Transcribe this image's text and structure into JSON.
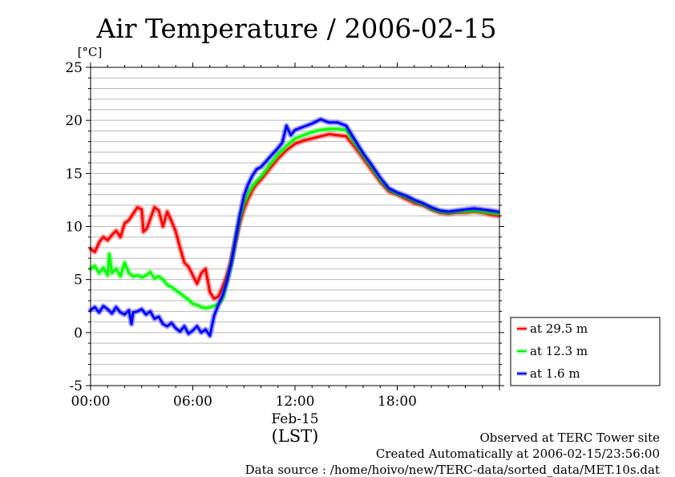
{
  "chart_data": {
    "type": "line",
    "title": "Air Temperature / 2006-02-15",
    "ylabel": "[°C]",
    "xlabel": "(LST)",
    "date_label": "Feb-15",
    "ylim": [
      -5,
      25
    ],
    "xlim_hours": [
      0,
      24
    ],
    "y_ticks": [
      "25",
      "20",
      "15",
      "10",
      "5",
      "0",
      "-5"
    ],
    "x_ticks": [
      {
        "h": 0,
        "label": "00:00"
      },
      {
        "h": 6,
        "label": "06:00"
      },
      {
        "h": 12,
        "label": "12:00"
      },
      {
        "h": 18,
        "label": "18:00"
      }
    ],
    "grid": true,
    "minor_grid_step": 1,
    "legend_position": "right",
    "series": [
      {
        "name": "at 29.5 m",
        "color": "#ff0000",
        "points": [
          [
            0,
            7.9
          ],
          [
            0.25,
            7.6
          ],
          [
            0.5,
            8.5
          ],
          [
            0.75,
            9.0
          ],
          [
            1,
            8.7
          ],
          [
            1.25,
            9.2
          ],
          [
            1.5,
            9.6
          ],
          [
            1.75,
            9.0
          ],
          [
            2,
            10.3
          ],
          [
            2.25,
            10.6
          ],
          [
            2.5,
            11.2
          ],
          [
            2.75,
            11.8
          ],
          [
            3.0,
            11.6
          ],
          [
            3.1,
            9.5
          ],
          [
            3.3,
            9.8
          ],
          [
            3.5,
            10.7
          ],
          [
            3.75,
            11.8
          ],
          [
            4.0,
            11.5
          ],
          [
            4.25,
            10.0
          ],
          [
            4.5,
            11.4
          ],
          [
            4.75,
            10.5
          ],
          [
            5.0,
            9.5
          ],
          [
            5.25,
            8.0
          ],
          [
            5.5,
            6.6
          ],
          [
            5.75,
            6.2
          ],
          [
            6.0,
            5.4
          ],
          [
            6.25,
            4.6
          ],
          [
            6.5,
            5.6
          ],
          [
            6.75,
            6.0
          ],
          [
            7.0,
            3.8
          ],
          [
            7.25,
            3.2
          ],
          [
            7.5,
            3.4
          ],
          [
            7.75,
            4.3
          ],
          [
            8.0,
            5.4
          ],
          [
            8.25,
            6.7
          ],
          [
            8.5,
            8.6
          ],
          [
            8.75,
            10.3
          ],
          [
            9.0,
            11.6
          ],
          [
            9.25,
            12.6
          ],
          [
            9.5,
            13.4
          ],
          [
            9.75,
            14.0
          ],
          [
            10.0,
            14.4
          ],
          [
            10.5,
            15.4
          ],
          [
            11.0,
            16.4
          ],
          [
            11.5,
            17.2
          ],
          [
            12.0,
            17.8
          ],
          [
            12.5,
            18.1
          ],
          [
            13.0,
            18.3
          ],
          [
            13.5,
            18.5
          ],
          [
            14.0,
            18.7
          ],
          [
            14.5,
            18.6
          ],
          [
            15.0,
            18.5
          ],
          [
            15.5,
            17.5
          ],
          [
            16.0,
            16.4
          ],
          [
            16.5,
            15.3
          ],
          [
            17.0,
            14.2
          ],
          [
            17.5,
            13.3
          ],
          [
            18.0,
            13.0
          ],
          [
            18.5,
            12.6
          ],
          [
            19.0,
            12.2
          ],
          [
            19.5,
            12.0
          ],
          [
            20.0,
            11.6
          ],
          [
            20.5,
            11.3
          ],
          [
            21.0,
            11.2
          ],
          [
            21.5,
            11.3
          ],
          [
            22.0,
            11.3
          ],
          [
            22.5,
            11.4
          ],
          [
            23.0,
            11.3
          ],
          [
            23.5,
            11.1
          ],
          [
            23.9,
            11.0
          ]
        ]
      },
      {
        "name": "at 12.3 m",
        "color": "#00ff00",
        "points": [
          [
            0,
            6.0
          ],
          [
            0.25,
            6.3
          ],
          [
            0.5,
            5.6
          ],
          [
            0.75,
            6.1
          ],
          [
            1.0,
            5.4
          ],
          [
            1.1,
            7.4
          ],
          [
            1.25,
            5.6
          ],
          [
            1.5,
            6.0
          ],
          [
            1.75,
            5.3
          ],
          [
            2.0,
            6.6
          ],
          [
            2.25,
            5.6
          ],
          [
            2.5,
            5.3
          ],
          [
            2.75,
            5.4
          ],
          [
            3.0,
            5.2
          ],
          [
            3.25,
            5.4
          ],
          [
            3.5,
            5.7
          ],
          [
            3.75,
            5.1
          ],
          [
            4.0,
            5.3
          ],
          [
            4.25,
            5.0
          ],
          [
            4.5,
            4.5
          ],
          [
            4.75,
            4.3
          ],
          [
            5.0,
            4.0
          ],
          [
            5.25,
            3.7
          ],
          [
            5.5,
            3.4
          ],
          [
            5.75,
            3.1
          ],
          [
            6.0,
            2.7
          ],
          [
            6.25,
            2.6
          ],
          [
            6.5,
            2.4
          ],
          [
            6.75,
            2.3
          ],
          [
            7.0,
            2.4
          ],
          [
            7.25,
            2.5
          ],
          [
            7.5,
            2.7
          ],
          [
            7.75,
            3.2
          ],
          [
            8.0,
            4.8
          ],
          [
            8.25,
            6.5
          ],
          [
            8.5,
            8.7
          ],
          [
            8.75,
            10.7
          ],
          [
            9.0,
            12.2
          ],
          [
            9.25,
            13.1
          ],
          [
            9.5,
            13.8
          ],
          [
            9.75,
            14.3
          ],
          [
            10.0,
            14.7
          ],
          [
            10.5,
            15.8
          ],
          [
            11.0,
            16.8
          ],
          [
            11.5,
            17.6
          ],
          [
            12.0,
            18.3
          ],
          [
            12.5,
            18.6
          ],
          [
            13.0,
            18.9
          ],
          [
            13.5,
            19.1
          ],
          [
            14.0,
            19.2
          ],
          [
            14.5,
            19.2
          ],
          [
            15.0,
            19.1
          ],
          [
            15.5,
            17.9
          ],
          [
            16.0,
            16.7
          ],
          [
            16.5,
            15.6
          ],
          [
            17.0,
            14.4
          ],
          [
            17.5,
            13.5
          ],
          [
            18.0,
            13.1
          ],
          [
            18.5,
            12.8
          ],
          [
            19.0,
            12.4
          ],
          [
            19.5,
            12.1
          ],
          [
            20.0,
            11.7
          ],
          [
            20.5,
            11.4
          ],
          [
            21.0,
            11.3
          ],
          [
            21.5,
            11.4
          ],
          [
            22.0,
            11.4
          ],
          [
            22.5,
            11.5
          ],
          [
            23.0,
            11.4
          ],
          [
            23.5,
            11.3
          ],
          [
            23.9,
            11.2
          ]
        ]
      },
      {
        "name": "at 1.6 m",
        "color": "#0000ff",
        "points": [
          [
            0,
            2.1
          ],
          [
            0.25,
            2.4
          ],
          [
            0.5,
            1.9
          ],
          [
            0.75,
            2.5
          ],
          [
            1.0,
            2.2
          ],
          [
            1.25,
            1.8
          ],
          [
            1.5,
            2.4
          ],
          [
            1.75,
            1.9
          ],
          [
            2.0,
            1.7
          ],
          [
            2.25,
            2.1
          ],
          [
            2.4,
            0.8
          ],
          [
            2.5,
            1.9
          ],
          [
            2.75,
            2.0
          ],
          [
            3.0,
            2.2
          ],
          [
            3.25,
            1.7
          ],
          [
            3.5,
            2.0
          ],
          [
            3.75,
            1.3
          ],
          [
            4.0,
            1.5
          ],
          [
            4.25,
            0.8
          ],
          [
            4.5,
            0.6
          ],
          [
            4.75,
            0.9
          ],
          [
            5.0,
            0.4
          ],
          [
            5.25,
            0.1
          ],
          [
            5.5,
            0.6
          ],
          [
            5.75,
            -0.1
          ],
          [
            6.0,
            0.2
          ],
          [
            6.25,
            0.6
          ],
          [
            6.5,
            0.0
          ],
          [
            6.75,
            0.3
          ],
          [
            7.0,
            -0.3
          ],
          [
            7.25,
            1.6
          ],
          [
            7.5,
            2.6
          ],
          [
            7.75,
            3.5
          ],
          [
            8.0,
            4.8
          ],
          [
            8.25,
            6.5
          ],
          [
            8.5,
            8.7
          ],
          [
            8.75,
            11.0
          ],
          [
            9.0,
            12.9
          ],
          [
            9.25,
            14.0
          ],
          [
            9.5,
            14.8
          ],
          [
            9.75,
            15.4
          ],
          [
            10.0,
            15.6
          ],
          [
            10.5,
            16.5
          ],
          [
            11.0,
            17.4
          ],
          [
            11.25,
            17.9
          ],
          [
            11.5,
            19.5
          ],
          [
            11.75,
            18.6
          ],
          [
            12.0,
            19.1
          ],
          [
            12.5,
            19.4
          ],
          [
            13.0,
            19.7
          ],
          [
            13.5,
            20.1
          ],
          [
            14.0,
            19.8
          ],
          [
            14.5,
            19.8
          ],
          [
            15.0,
            19.5
          ],
          [
            15.5,
            18.2
          ],
          [
            16.0,
            16.9
          ],
          [
            16.5,
            15.8
          ],
          [
            17.0,
            14.6
          ],
          [
            17.5,
            13.6
          ],
          [
            18.0,
            13.2
          ],
          [
            18.5,
            12.9
          ],
          [
            19.0,
            12.5
          ],
          [
            19.5,
            12.2
          ],
          [
            20.0,
            11.8
          ],
          [
            20.5,
            11.5
          ],
          [
            21.0,
            11.4
          ],
          [
            21.5,
            11.5
          ],
          [
            22.0,
            11.6
          ],
          [
            22.5,
            11.7
          ],
          [
            23.0,
            11.6
          ],
          [
            23.5,
            11.5
          ],
          [
            23.9,
            11.4
          ]
        ]
      }
    ]
  },
  "footer": {
    "line1": "Observed at TERC Tower site",
    "line2": "Created Automatically at 2006-02-15/23:56:00",
    "line3": "Data source : /home/hoivo/new/TERC-data/sorted_data/MET.10s.dat"
  }
}
